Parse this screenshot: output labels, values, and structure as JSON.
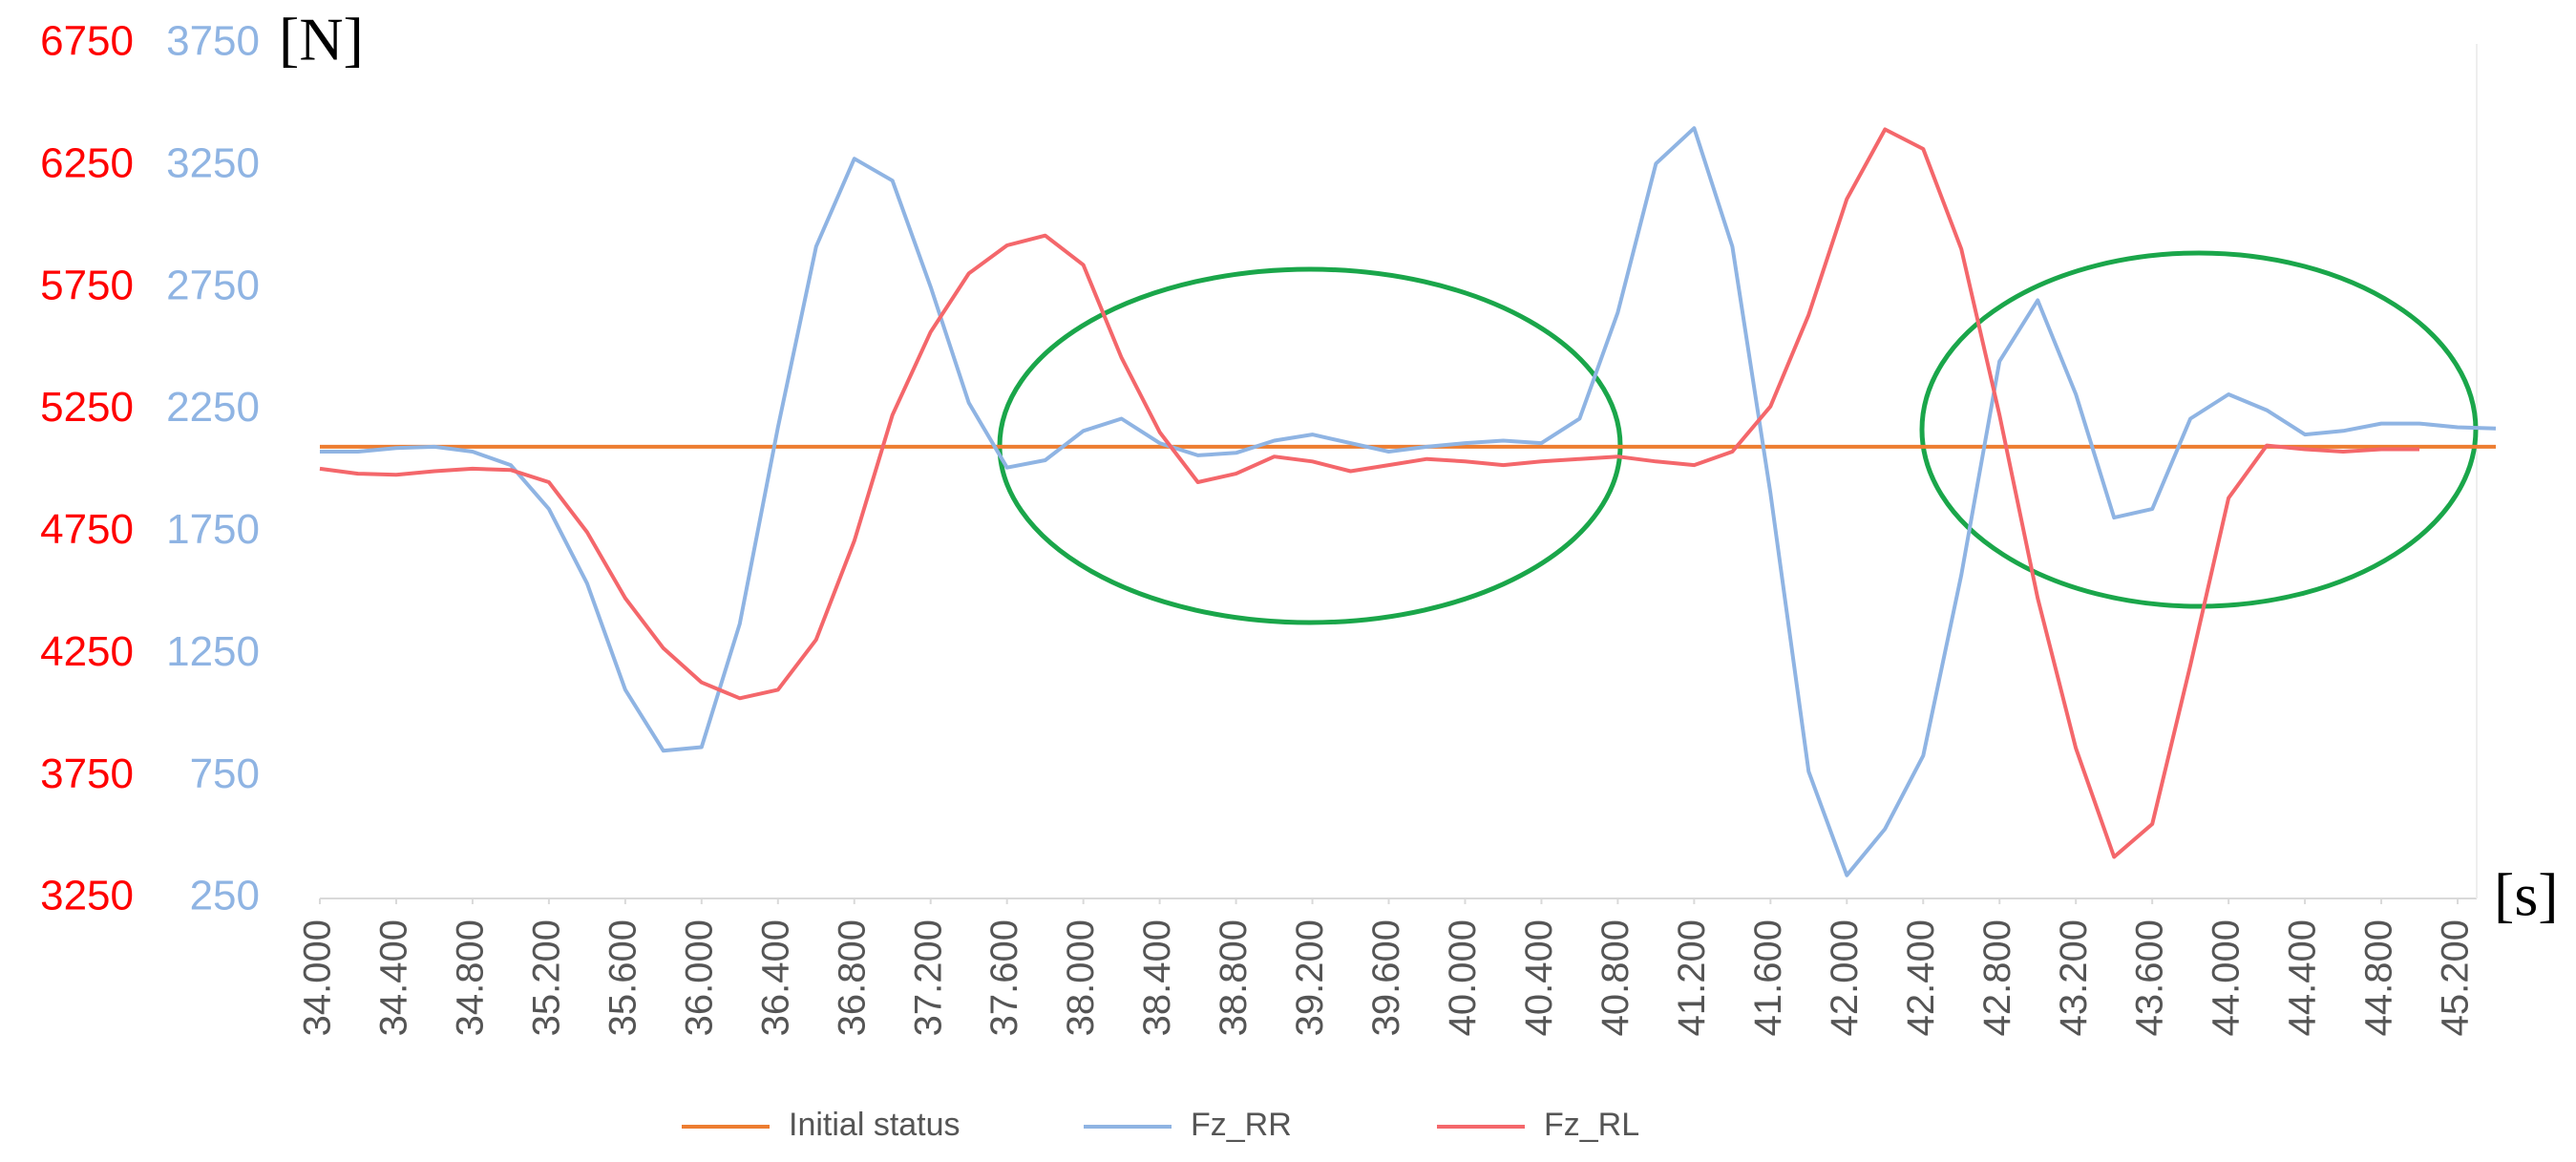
{
  "chart_data": {
    "type": "line",
    "y_label": "[N]",
    "x_label": "[s]",
    "x": [
      34.0,
      34.2,
      34.4,
      34.6,
      34.8,
      35.0,
      35.2,
      35.4,
      35.6,
      35.8,
      36.0,
      36.2,
      36.4,
      36.6,
      36.8,
      37.0,
      37.2,
      37.4,
      37.6,
      37.8,
      38.0,
      38.2,
      38.4,
      38.6,
      38.8,
      39.0,
      39.2,
      39.4,
      39.6,
      39.8,
      40.0,
      40.2,
      40.4,
      40.6,
      40.8,
      41.0,
      41.2,
      41.4,
      41.6,
      41.8,
      42.0,
      42.2,
      42.4,
      42.6,
      42.8,
      43.0,
      43.2,
      43.4,
      43.6,
      43.8,
      44.0,
      44.2,
      44.4,
      44.6,
      44.8,
      45.0,
      45.2,
      45.4
    ],
    "series": [
      {
        "name": "Initial status",
        "color": "#ed7d31",
        "values": [
          5100,
          5100,
          5100,
          5100,
          5100,
          5100,
          5100,
          5100,
          5100,
          5100,
          5100,
          5100,
          5100,
          5100,
          5100,
          5100,
          5100,
          5100,
          5100,
          5100,
          5100,
          5100,
          5100,
          5100,
          5100,
          5100,
          5100,
          5100,
          5100,
          5100,
          5100,
          5100,
          5100,
          5100,
          5100,
          5100,
          5100,
          5100,
          5100,
          5100,
          5100,
          5100,
          5100,
          5100,
          5100,
          5100,
          5100,
          5100,
          5100,
          5100,
          5100,
          5100,
          5100,
          5100,
          5100,
          5100,
          5100,
          5100
        ]
      },
      {
        "name": "Fz_RR",
        "color": "#8fb4e3",
        "axis": "y2",
        "values": [
          2080,
          2080,
          2095,
          2100,
          2080,
          2025,
          1845,
          1540,
          1105,
          855,
          870,
          1375,
          2180,
          2920,
          3280,
          3190,
          2755,
          2280,
          2015,
          2045,
          2165,
          2215,
          2115,
          2065,
          2075,
          2125,
          2150,
          2115,
          2080,
          2100,
          2115,
          2125,
          2115,
          2215,
          2650,
          3260,
          3405,
          2920,
          1910,
          770,
          345,
          535,
          835,
          1575,
          2450,
          2700,
          2315,
          1810,
          1845,
          2215,
          2315,
          2250,
          2150,
          2165,
          2195,
          2195,
          2180,
          2175
        ]
      },
      {
        "name": "Fz_RL",
        "color": "#f4676b",
        "values": [
          5010,
          4990,
          4985,
          5000,
          5010,
          5005,
          4955,
          4750,
          4480,
          4275,
          4135,
          4070,
          4105,
          4310,
          4715,
          5230,
          5570,
          5810,
          5925,
          5965,
          5845,
          5465,
          5160,
          4955,
          4990,
          5060,
          5040,
          5000,
          5025,
          5050,
          5040,
          5025,
          5040,
          5050,
          5060,
          5040,
          5025,
          5080,
          5265,
          5640,
          6115,
          6400,
          6320,
          5910,
          5230,
          4480,
          3865,
          3420,
          3555,
          4205,
          4890,
          5105,
          5090,
          5080,
          5090,
          5090,
          null,
          null
        ]
      }
    ],
    "xlim": [
      34.0,
      45.4
    ],
    "xticks": [
      {
        "value": 34.0,
        "label": "34.000"
      },
      {
        "value": 34.4,
        "label": "34.400"
      },
      {
        "value": 34.8,
        "label": "34.800"
      },
      {
        "value": 35.2,
        "label": "35.200"
      },
      {
        "value": 35.6,
        "label": "35.600"
      },
      {
        "value": 36.0,
        "label": "36.000"
      },
      {
        "value": 36.4,
        "label": "36.400"
      },
      {
        "value": 36.8,
        "label": "36.800"
      },
      {
        "value": 37.2,
        "label": "37.200"
      },
      {
        "value": 37.6,
        "label": "37.600"
      },
      {
        "value": 38.0,
        "label": "38.000"
      },
      {
        "value": 38.4,
        "label": "38.400"
      },
      {
        "value": 38.8,
        "label": "38.800"
      },
      {
        "value": 39.2,
        "label": "39.200"
      },
      {
        "value": 39.6,
        "label": "39.600"
      },
      {
        "value": 40.0,
        "label": "40.000"
      },
      {
        "value": 40.4,
        "label": "40.400"
      },
      {
        "value": 40.8,
        "label": "40.800"
      },
      {
        "value": 41.2,
        "label": "41.200"
      },
      {
        "value": 41.6,
        "label": "41.600"
      },
      {
        "value": 42.0,
        "label": "42.000"
      },
      {
        "value": 42.4,
        "label": "42.400"
      },
      {
        "value": 42.8,
        "label": "42.800"
      },
      {
        "value": 43.2,
        "label": "43.200"
      },
      {
        "value": 43.6,
        "label": "43.600"
      },
      {
        "value": 44.0,
        "label": "44.000"
      },
      {
        "value": 44.4,
        "label": "44.400"
      },
      {
        "value": 44.8,
        "label": "44.800"
      },
      {
        "value": 45.2,
        "label": "45.200"
      }
    ],
    "ylim": [
      3250,
      6750
    ],
    "yticks": [
      3250,
      3750,
      4250,
      4750,
      5250,
      5750,
      6250,
      6750
    ],
    "ytick_color": "#ff0000",
    "y2lim": [
      250,
      3750
    ],
    "y2ticks": [
      250,
      750,
      1250,
      1750,
      2250,
      2750,
      3250,
      3750
    ],
    "y2tick_color": "#8fb4e3",
    "grid": false,
    "legend": "bottom"
  }
}
